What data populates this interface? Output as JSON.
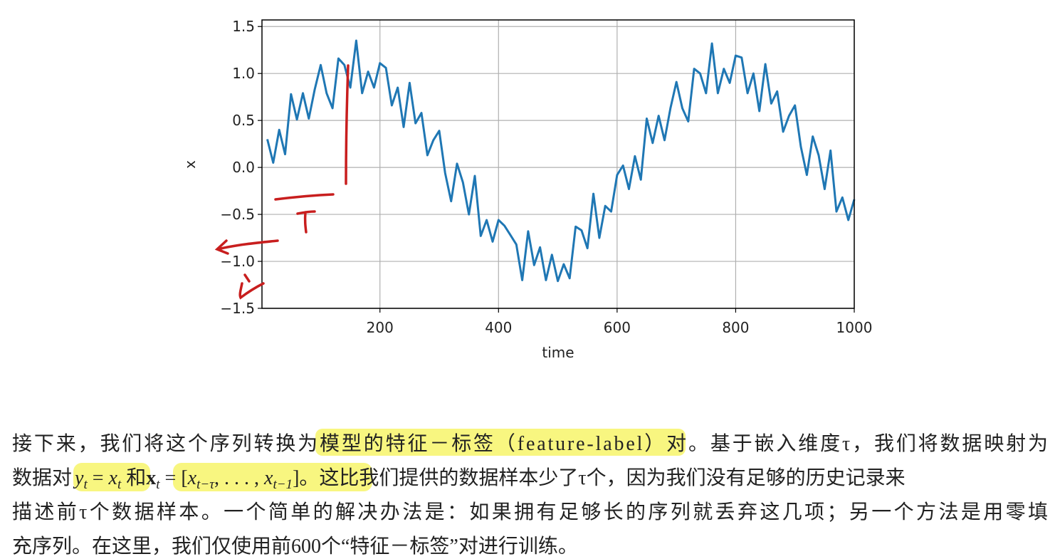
{
  "chart_data": {
    "type": "line",
    "xlabel": "time",
    "ylabel": "x",
    "color": "#1f77b4",
    "grid": true,
    "x": [
      10,
      20,
      30,
      40,
      50,
      60,
      70,
      80,
      90,
      100,
      110,
      120,
      130,
      140,
      150,
      160,
      170,
      180,
      190,
      200,
      210,
      220,
      230,
      240,
      250,
      260,
      270,
      280,
      290,
      300,
      310,
      320,
      330,
      340,
      350,
      360,
      370,
      380,
      390,
      400,
      410,
      420,
      430,
      440,
      450,
      460,
      470,
      480,
      490,
      500,
      510,
      520,
      530,
      540,
      550,
      560,
      570,
      580,
      590,
      600,
      610,
      620,
      630,
      640,
      650,
      660,
      670,
      680,
      690,
      700,
      710,
      720,
      730,
      740,
      750,
      760,
      770,
      780,
      790,
      800,
      810,
      820,
      830,
      840,
      850,
      860,
      870,
      880,
      890,
      900,
      910,
      920,
      930,
      940,
      950,
      960,
      970,
      980,
      990,
      1000
    ],
    "values": [
      0.3,
      0.05,
      0.4,
      0.14,
      0.78,
      0.51,
      0.79,
      0.52,
      0.83,
      1.09,
      0.79,
      0.63,
      1.16,
      1.09,
      0.85,
      1.35,
      0.79,
      1.02,
      0.85,
      1.11,
      1.06,
      0.66,
      0.85,
      0.43,
      0.9,
      0.47,
      0.58,
      0.13,
      0.29,
      0.39,
      -0.06,
      -0.36,
      0.04,
      -0.16,
      -0.5,
      -0.09,
      -0.73,
      -0.56,
      -0.79,
      -0.56,
      -0.62,
      -0.72,
      -0.82,
      -1.2,
      -0.68,
      -1.04,
      -0.85,
      -1.2,
      -0.93,
      -1.21,
      -1.03,
      -1.18,
      -0.63,
      -0.67,
      -0.86,
      -0.28,
      -0.75,
      -0.41,
      -0.47,
      -0.08,
      0.02,
      -0.23,
      0.12,
      -0.13,
      0.52,
      0.26,
      0.55,
      0.29,
      0.63,
      0.91,
      0.63,
      0.49,
      1.05,
      1.0,
      0.79,
      1.32,
      0.79,
      1.05,
      0.9,
      1.19,
      1.17,
      0.79,
      1.0,
      0.6,
      1.1,
      0.68,
      0.81,
      0.38,
      0.55,
      0.66,
      0.22,
      -0.08,
      0.33,
      0.13,
      -0.23,
      0.18,
      -0.47,
      -0.32,
      -0.56,
      -0.34
    ],
    "xlim": [
      1,
      1000
    ],
    "xticks": [
      200,
      400,
      600,
      800,
      1000
    ],
    "ylim": [
      -1.5,
      1.57
    ],
    "yticks": [
      {
        "value": -1.5,
        "label": "−1.5"
      },
      {
        "value": -1.0,
        "label": "−1.0"
      },
      {
        "value": -0.5,
        "label": "−0.5"
      },
      {
        "value": 0.0,
        "label": "0.0"
      },
      0.5,
      {
        "value": 1.0,
        "label": "1.0"
      },
      1.5
    ]
  },
  "paragraph": {
    "lines": [
      "接下来，我们将这个序列转换为模型的特征－标签（feature-label）对。基于嵌入维度τ，我们将数据映射为",
      [
        "数据对",
        "y",
        "t",
        " = ",
        "x",
        "t",
        " 和",
        "x",
        "t",
        " = [",
        "x",
        "t−τ",
        ", . . . , ",
        "x",
        "t−1",
        "]。这比我们提供的数据样本少了τ个，因为我们没有足够的历史记录来"
      ],
      "描述前τ个数据样本。一个简单的解决办法是：如果拥有足够长的序列就丢弃这几项；另一个方法是用零填",
      "充序列。在这里，我们仅使用前600个“特征－标签”对进行训练。"
    ]
  }
}
